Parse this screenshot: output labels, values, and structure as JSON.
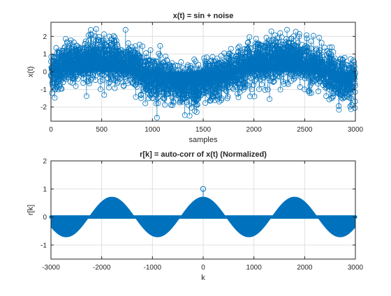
{
  "colors": {
    "series": "#0072BD",
    "axis": "#262626",
    "grid": "#dfdfdf",
    "background": "#ffffff"
  },
  "chart_data": [
    {
      "type": "stem",
      "title": "x(t) = sin + noise",
      "xlabel": "samples",
      "ylabel": "x(t)",
      "xlim": [
        0,
        3000
      ],
      "ylim": [
        -2.8,
        2.8
      ],
      "xticks": [
        0,
        500,
        1000,
        1500,
        2000,
        2500,
        3000
      ],
      "xtick_labels": [
        "0",
        "500",
        "1000",
        "1500",
        "2000",
        "2500",
        "3000"
      ],
      "yticks": [
        2,
        1,
        0,
        -1,
        -2
      ],
      "ytick_labels": [
        "2",
        "1",
        "0",
        "-1",
        "-2"
      ],
      "grid": true,
      "marker": "circle",
      "n_samples": 3000,
      "signal": {
        "amplitude": 0.75,
        "period_samples": 1800,
        "phase_peak_sample": 450
      },
      "noise_std": 0.6
    },
    {
      "type": "stem",
      "title": "r[k] = auto-corr of x(t) (Normalized)",
      "xlabel": "k",
      "ylabel": "r[k]",
      "xlim": [
        -3000,
        3000
      ],
      "ylim": [
        -1.5,
        2
      ],
      "xticks": [
        -3000,
        -2000,
        -1000,
        0,
        1000,
        2000,
        3000
      ],
      "xtick_labels": [
        "-3000",
        "-2000",
        "-1000",
        "0",
        "1000",
        "2000",
        "3000"
      ],
      "yticks": [
        2,
        1,
        0,
        -1
      ],
      "ytick_labels": [
        "2",
        "1",
        "0",
        "-1"
      ],
      "grid": true,
      "marker": "circle",
      "envelope": {
        "amplitude": 0.72,
        "period_lags": 1800
      },
      "peak": {
        "k": 0,
        "value": 1.0
      }
    }
  ]
}
